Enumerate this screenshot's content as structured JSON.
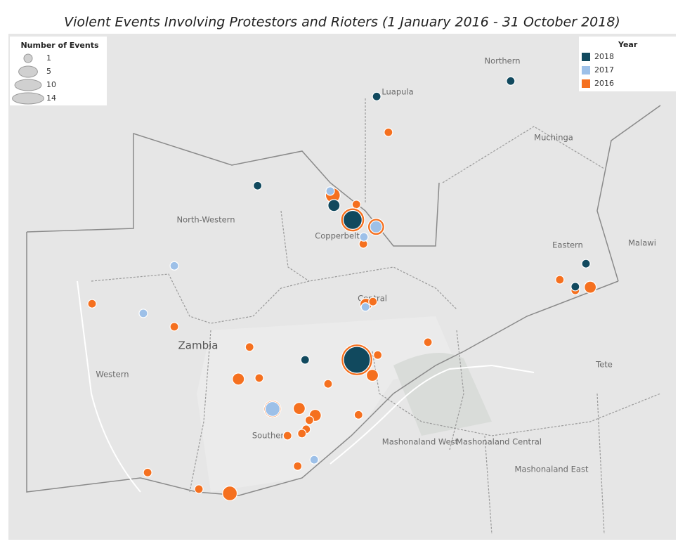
{
  "chart_data": {
    "type": "map",
    "title": "Violent Events Involving Protestors and Rioters (1 January 2016 - 31 October 2018)",
    "size_legend": {
      "title": "Number of Events",
      "values": [
        1,
        5,
        10,
        14
      ]
    },
    "color_legend_title": "Year",
    "places": [
      "Northern",
      "Luapula",
      "Muchinga",
      "North-Western",
      "Copperbelt",
      "Eastern",
      "Malawi",
      "Central",
      "Zambia",
      "Western",
      "Tete",
      "Southern",
      "Mashonaland West",
      "Mashonaland Central",
      "Mashonaland East"
    ],
    "series": [
      {
        "name": "2018",
        "color": "#11495e",
        "lon": [
          31.16,
          28.65,
          26.42,
          27.85,
          28.2,
          27.31,
          28.28,
          32.57,
          32.37
        ],
        "lat": [
          -10.2,
          -10.49,
          -12.16,
          -12.53,
          -12.8,
          -15.42,
          -15.42,
          -13.62,
          -14.05
        ],
        "values": [
          1,
          1,
          1,
          2,
          5,
          1,
          10,
          1,
          1
        ]
      },
      {
        "name": "2017",
        "color": "#9dc0e8",
        "lon": [
          27.78,
          28.64,
          28.41,
          24.86,
          24.28,
          28.44,
          26.7,
          27.48
        ],
        "lat": [
          -12.26,
          -12.93,
          -13.12,
          -13.66,
          -14.55,
          -14.43,
          -16.34,
          -17.29
        ],
        "values": [
          1,
          2,
          1,
          1,
          1,
          1,
          3,
          1
        ]
      },
      {
        "name": "2016",
        "color": "#f5701f",
        "lon": [
          28.87,
          27.83,
          28.27,
          28.2,
          28.64,
          28.4,
          28.45,
          28.58,
          23.32,
          24.86,
          29.61,
          26.27,
          28.28,
          28.67,
          28.57,
          26.06,
          26.45,
          27.74,
          26.7,
          27.2,
          27.5,
          27.39,
          28.31,
          27.33,
          27.25,
          26.98,
          27.17,
          24.36,
          25.32,
          25.9,
          32.08,
          32.37,
          32.65
        ],
        "lat": [
          -11.16,
          -12.34,
          -12.51,
          -12.8,
          -12.93,
          -13.25,
          -14.38,
          -14.33,
          -14.37,
          -14.8,
          -15.09,
          -15.18,
          -15.42,
          -15.33,
          -15.71,
          -15.78,
          -15.76,
          -15.87,
          -16.34,
          -16.33,
          -16.46,
          -16.55,
          -16.45,
          -16.72,
          -16.8,
          -16.84,
          -17.41,
          -17.53,
          -17.84,
          -17.92,
          -13.92,
          -14.12,
          -14.06
        ],
        "values": [
          1,
          3,
          1,
          8,
          4,
          1,
          2,
          1,
          1,
          1,
          1,
          1,
          14,
          1,
          2,
          2,
          1,
          1,
          4,
          2,
          2,
          1,
          1,
          1,
          1,
          1,
          1,
          1,
          1,
          3,
          1,
          1,
          2
        ]
      }
    ]
  }
}
